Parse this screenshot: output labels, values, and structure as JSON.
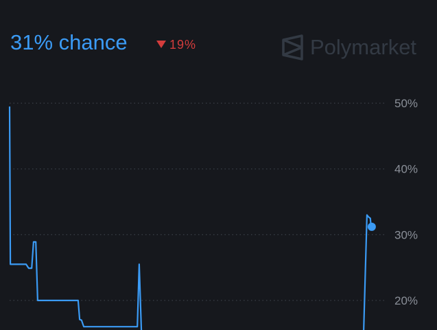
{
  "header": {
    "chance_label": "31% chance",
    "change": "19%",
    "change_direction": "down",
    "brand": "Polymarket"
  },
  "colors": {
    "line": "#3b9bf5",
    "down": "#d43c3c",
    "background": "#16181d",
    "grid": "#3a3f47"
  },
  "chart_data": {
    "type": "line",
    "title": "",
    "xlabel": "",
    "ylabel": "",
    "y_ticks": [
      50,
      40,
      30,
      20
    ],
    "y_tick_labels": [
      "50%",
      "40%",
      "30%",
      "20%"
    ],
    "ylim": [
      15.5,
      65.7
    ],
    "y_axis_position": "right",
    "grid": "horizontal dotted",
    "series": [
      {
        "x": [
          0,
          0.2,
          4.4,
          5.1,
          5.9,
          6.4,
          7.0,
          7.5,
          18.3,
          18.7,
          19.2,
          19.8,
          34.1,
          34.6,
          35.2,
          94.5,
          95.4,
          95.8,
          96.3,
          96.5
        ],
        "values": [
          49.5,
          25.5,
          25.5,
          24.9,
          24.9,
          28.9,
          28.9,
          20.0,
          20.0,
          17.1,
          17.0,
          16.0,
          16.0,
          25.5,
          15.0,
          15.0,
          33.0,
          32.7,
          32.5,
          31.2
        ]
      }
    ],
    "last_point": {
      "x": 96.5,
      "value": 31.2
    }
  }
}
